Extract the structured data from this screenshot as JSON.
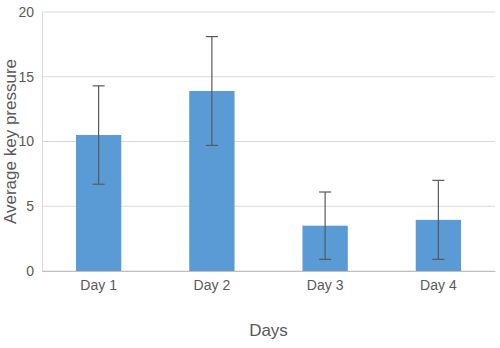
{
  "chart_data": {
    "type": "bar",
    "x_label": "Days",
    "y_label": "Average key pressure",
    "categories": [
      "Day 1",
      "Day 2",
      "Day 3",
      "Day 4"
    ],
    "values": [
      10.5,
      13.9,
      3.5,
      3.95
    ],
    "errors": [
      3.8,
      4.2,
      2.6,
      3.05
    ],
    "color": "#5b9bd5",
    "ylim": [
      0,
      20
    ],
    "yticks": [
      0,
      5,
      10,
      15,
      20
    ],
    "grid": true
  }
}
